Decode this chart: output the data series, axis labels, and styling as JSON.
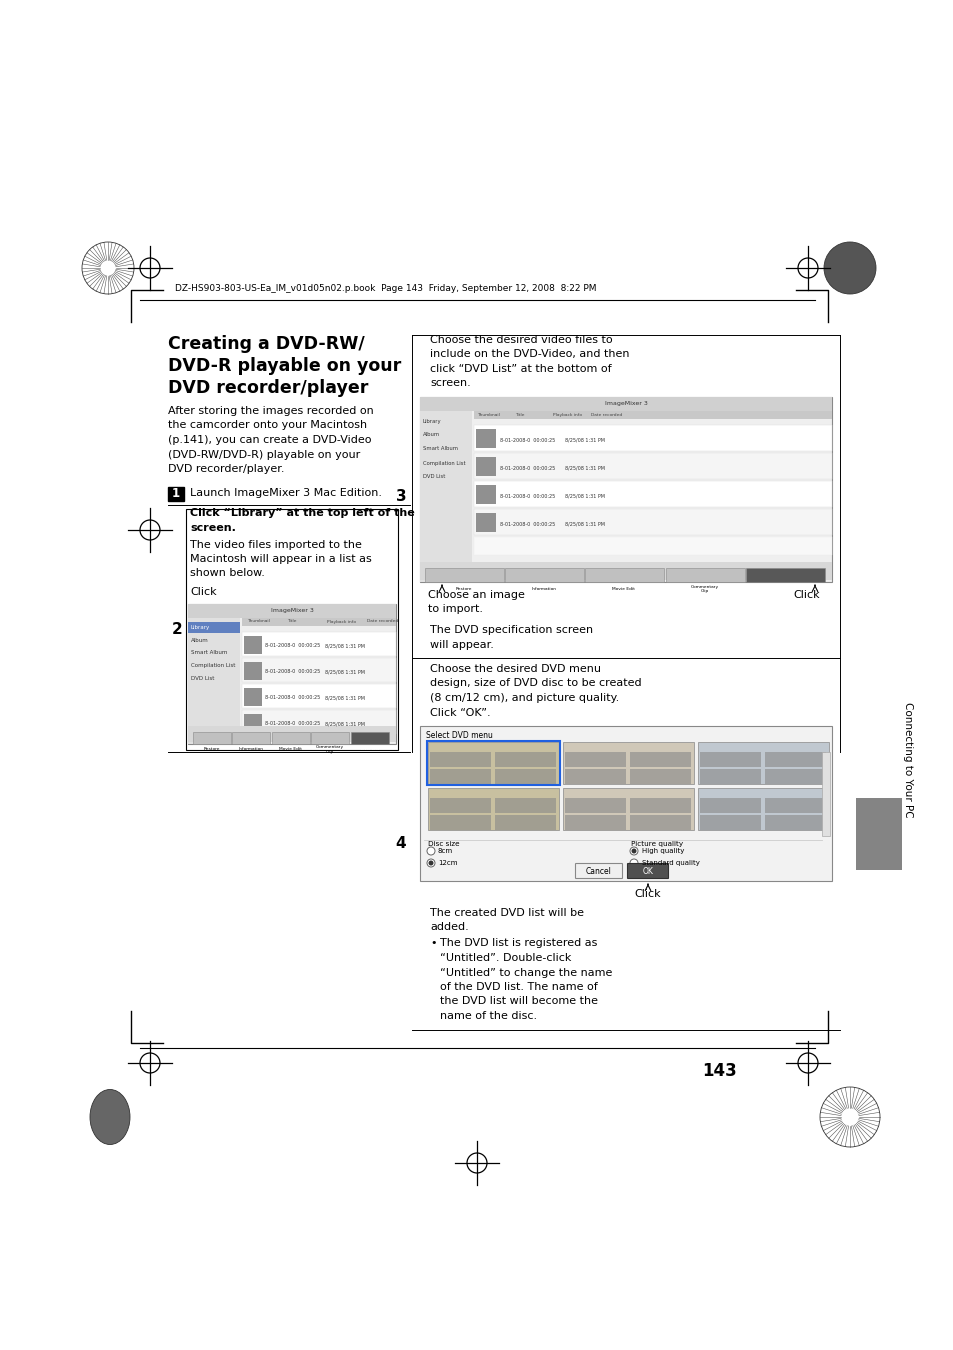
{
  "page_num": "143",
  "header_text": "DZ-HS903-803-US-Ea_IM_v01d05n02.p.book  Page 143  Friday, September 12, 2008  8:22 PM",
  "title_lines": [
    "Creating a DVD-RW/",
    "DVD-R playable on your",
    "DVD recorder/player"
  ],
  "intro_lines": [
    "After storing the images recorded on",
    "the camcorder onto your Macintosh",
    "(p.141), you can create a DVD-Video",
    "(DVD-RW/DVD-R) playable on your",
    "DVD recorder/player."
  ],
  "step1_num": "1",
  "step1_text": "Launch ImageMixer 3 Mac Edition.",
  "step2_num": "2",
  "step2_bold_lines": [
    "Click “Library” at the top left of the",
    "screen."
  ],
  "step2_body_lines": [
    "The video files imported to the",
    "Macintosh will appear in a list as",
    "shown below."
  ],
  "step2_click": "Click",
  "step3_num": "3",
  "step3_title_lines": [
    "Choose the desired video files to",
    "include on the DVD-Video, and then",
    "click “DVD List” at the bottom of",
    "screen."
  ],
  "step3_caption1a": "Choose an image",
  "step3_caption1b": "to import.",
  "step3_caption2": "Click",
  "step3_footer1": "The DVD specification screen",
  "step3_footer2": "will appear.",
  "step4_num": "4",
  "step4_title_lines": [
    "Choose the desired DVD menu",
    "design, size of DVD disc to be created",
    "(8 cm/12 cm), and picture quality.",
    "Click “OK”."
  ],
  "step4_click": "Click",
  "step4_body1": "The created DVD list will be",
  "step4_body2": "added.",
  "step4_bullet_lines": [
    "The DVD list is registered as",
    "“Untitled”. Double-click",
    "“Untitled” to change the name",
    "of the DVD list. The name of",
    "the DVD list will become the",
    "name of the disc."
  ],
  "sidebar_text": "Connecting to Your PC",
  "sidebar_color": "#848484",
  "bg": "#ffffff"
}
